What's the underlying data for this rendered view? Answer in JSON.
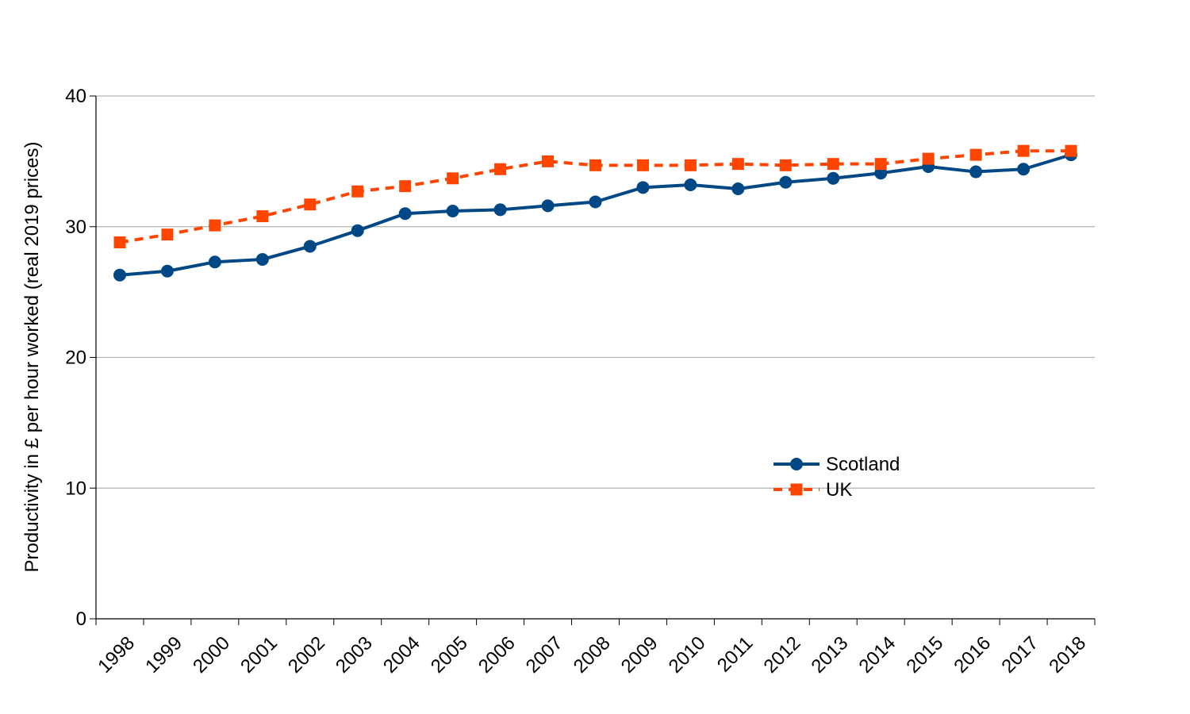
{
  "chart_data": {
    "type": "line",
    "title": "",
    "xlabel": "",
    "ylabel": "Productivity in £ per hour worked (real 2019 prices)",
    "ylim": [
      0,
      40
    ],
    "yticks": [
      0,
      10,
      20,
      30,
      40
    ],
    "grid": "horizontal",
    "legend_position": "lower-right inside plot",
    "categories": [
      "1998",
      "1999",
      "2000",
      "2001",
      "2002",
      "2003",
      "2004",
      "2005",
      "2006",
      "2007",
      "2008",
      "2009",
      "2010",
      "2011",
      "2012",
      "2013",
      "2014",
      "2015",
      "2016",
      "2017",
      "2018"
    ],
    "series": [
      {
        "name": "Scotland",
        "color": "#004785",
        "line_style": "solid",
        "marker": "circle",
        "values": [
          26.3,
          26.6,
          27.3,
          27.5,
          28.5,
          29.7,
          31.0,
          31.2,
          31.3,
          31.6,
          31.9,
          33.0,
          33.2,
          32.9,
          33.4,
          33.7,
          34.1,
          34.6,
          34.2,
          34.4,
          35.5
        ]
      },
      {
        "name": "UK",
        "color": "#FF4500",
        "line_style": "dashed",
        "marker": "square",
        "values": [
          28.8,
          29.4,
          30.1,
          30.8,
          31.7,
          32.7,
          33.1,
          33.7,
          34.4,
          35.0,
          34.7,
          34.7,
          34.7,
          34.8,
          34.7,
          34.8,
          34.8,
          35.2,
          35.5,
          35.8,
          35.8
        ]
      }
    ]
  }
}
